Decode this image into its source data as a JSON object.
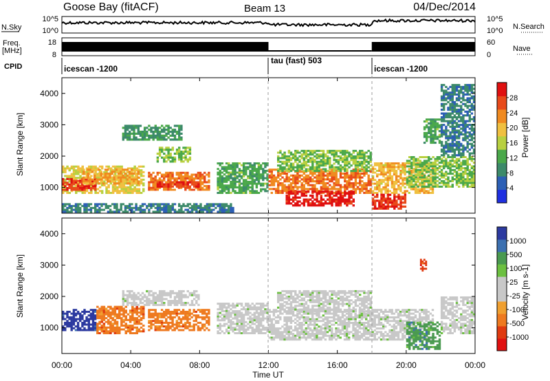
{
  "header": {
    "station": "Goose Bay (fitACF)",
    "beam": "Beam 13",
    "date": "04/Dec/2014"
  },
  "noise_panel": {
    "left_label": "N.Sky",
    "right_label": "N.Search",
    "left_ticks": [
      "10^5",
      "10^0"
    ],
    "right_ticks": [
      "10^5",
      "10^0"
    ]
  },
  "freq_panel": {
    "left_label_line1": "Freq.",
    "left_label_line2": "[MHz]",
    "left_ticks": [
      "18",
      "8"
    ],
    "right_label": "Nave",
    "right_ticks": [
      "60",
      "0"
    ]
  },
  "cpid_panel": {
    "label": "CPID",
    "segments": [
      "icescan -1200",
      "tau (fast) 503",
      "icescan -1200"
    ]
  },
  "colors": {
    "power": [
      "#1f2fe0",
      "#2c5fb5",
      "#3c8a6a",
      "#4aa84a",
      "#b8d040",
      "#f0c040",
      "#f08a20",
      "#e84a1a",
      "#e01010"
    ],
    "velocity": [
      "#2c3aa0",
      "#3c70b0",
      "#4a9a50",
      "#6cc040",
      "#c8c8c8",
      "#c8c8c8",
      "#f0a030",
      "#ee7a20",
      "#e03a10",
      "#e01010"
    ]
  },
  "chart_data": [
    {
      "type": "heatmap",
      "name": "Power",
      "x": [
        "00:00",
        "04:00",
        "08:00",
        "12:00",
        "16:00",
        "20:00",
        "00:00"
      ],
      "xlim": [
        0,
        24
      ],
      "ylabel": "Slant Range [km]",
      "y_ticks": [
        "1000",
        "2000",
        "3000",
        "4000"
      ],
      "ylim": [
        180,
        4500
      ],
      "colorbar_label": "Power [dB]",
      "colorbar_ticks": [
        "4",
        "8",
        "12",
        "16",
        "20",
        "24",
        "28"
      ],
      "regions": [
        {
          "t": [
            0.0,
            4.8
          ],
          "r": [
            800,
            1700
          ],
          "value": 16
        },
        {
          "t": [
            0.0,
            2.0
          ],
          "r": [
            900,
            1300
          ],
          "value": 26
        },
        {
          "t": [
            1.2,
            4.5
          ],
          "r": [
            1100,
            1600
          ],
          "value": 20
        },
        {
          "t": [
            5.0,
            8.6
          ],
          "r": [
            900,
            1500
          ],
          "value": 22
        },
        {
          "t": [
            5.5,
            8.0
          ],
          "r": [
            1000,
            1200
          ],
          "value": 26
        },
        {
          "t": [
            9.0,
            12.0
          ],
          "r": [
            800,
            1800
          ],
          "value": 10
        },
        {
          "t": [
            12.0,
            18.0
          ],
          "r": [
            800,
            1600
          ],
          "value": 22
        },
        {
          "t": [
            13.0,
            17.0
          ],
          "r": [
            400,
            900
          ],
          "value": 28
        },
        {
          "t": [
            12.5,
            18.0
          ],
          "r": [
            1500,
            2200
          ],
          "value": 12
        },
        {
          "t": [
            18.0,
            21.6
          ],
          "r": [
            800,
            1800
          ],
          "value": 18
        },
        {
          "t": [
            18.0,
            20.0
          ],
          "r": [
            300,
            800
          ],
          "value": 26
        },
        {
          "t": [
            20.0,
            24.0
          ],
          "r": [
            1000,
            2000
          ],
          "value": 12
        },
        {
          "t": [
            21.0,
            22.0
          ],
          "r": [
            2400,
            3200
          ],
          "value": 10
        },
        {
          "t": [
            22.0,
            24.0
          ],
          "r": [
            2000,
            4300
          ],
          "value": 6
        },
        {
          "t": [
            3.5,
            7.0
          ],
          "r": [
            2500,
            3000
          ],
          "value": 8
        },
        {
          "t": [
            5.5,
            7.5
          ],
          "r": [
            1800,
            2300
          ],
          "value": 12
        },
        {
          "t": [
            0.0,
            10.0
          ],
          "r": [
            200,
            500
          ],
          "value": 6
        }
      ]
    },
    {
      "type": "heatmap",
      "name": "Velocity",
      "x": [
        "00:00",
        "04:00",
        "08:00",
        "12:00",
        "16:00",
        "20:00",
        "00:00"
      ],
      "xlim": [
        0,
        24
      ],
      "xlabel": "Time UT",
      "ylabel": "Slant Range [km]",
      "y_ticks": [
        "1000",
        "2000",
        "3000",
        "4000"
      ],
      "ylim": [
        180,
        4500
      ],
      "colorbar_label": "Velocity [m s-1]",
      "colorbar_ticks": [
        "1000",
        "500",
        "100",
        "25",
        "-25",
        "-100",
        "-500",
        "-1000"
      ],
      "regions": [
        {
          "t": [
            0.0,
            2.0
          ],
          "r": [
            900,
            1600
          ],
          "value": 700
        },
        {
          "t": [
            2.0,
            4.8
          ],
          "r": [
            800,
            1700
          ],
          "value": -150
        },
        {
          "t": [
            5.0,
            8.6
          ],
          "r": [
            900,
            1600
          ],
          "value": -200
        },
        {
          "t": [
            9.0,
            12.0
          ],
          "r": [
            800,
            1800
          ],
          "value": 0
        },
        {
          "t": [
            12.0,
            21.6
          ],
          "r": [
            600,
            1600
          ],
          "value": 0
        },
        {
          "t": [
            12.5,
            18.0
          ],
          "r": [
            1500,
            2200
          ],
          "value": 0
        },
        {
          "t": [
            3.5,
            8.0
          ],
          "r": [
            1700,
            2200
          ],
          "value": 0
        },
        {
          "t": [
            20.0,
            22.0
          ],
          "r": [
            300,
            1200
          ],
          "value": 150
        },
        {
          "t": [
            20.8,
            21.2
          ],
          "r": [
            2800,
            3200
          ],
          "value": -600
        },
        {
          "t": [
            22.0,
            24.0
          ],
          "r": [
            800,
            2000
          ],
          "value": 0
        }
      ]
    }
  ]
}
